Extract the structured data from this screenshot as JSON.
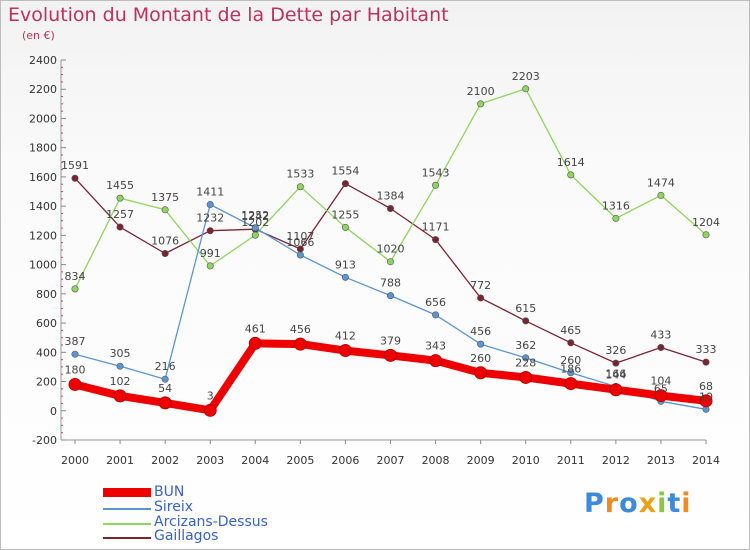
{
  "title": "Evolution du Montant de la Dette par Habitant",
  "unit": "(en €)",
  "chart_data": {
    "type": "line",
    "title": "Evolution du Montant de la Dette par Habitant",
    "subtitle": "(en €)",
    "xlabel": "",
    "ylabel": "",
    "x": [
      2000,
      2001,
      2002,
      2003,
      2004,
      2005,
      2006,
      2007,
      2008,
      2009,
      2010,
      2011,
      2012,
      2013,
      2014
    ],
    "ylim": [
      -200,
      2400
    ],
    "y_ticks": [
      -200,
      0,
      200,
      400,
      600,
      800,
      1000,
      1200,
      1400,
      1600,
      1800,
      2000,
      2200,
      2400
    ],
    "grid": false,
    "legend_position": "bottom-left",
    "series": [
      {
        "name": "BUN",
        "color": "#ee0000",
        "values": [
          180,
          102,
          54,
          3,
          461,
          456,
          412,
          379,
          343,
          260,
          228,
          186,
          144,
          104,
          68
        ]
      },
      {
        "name": "Sireix",
        "color": "#5b96d2",
        "values": [
          387,
          305,
          216,
          1411,
          1252,
          1066,
          913,
          788,
          656,
          456,
          362,
          260,
          166,
          65,
          10
        ]
      },
      {
        "name": "Arcizans-Dessus",
        "color": "#8fd561",
        "values": [
          834,
          1455,
          1375,
          991,
          1202,
          1533,
          1255,
          1020,
          1543,
          2100,
          2203,
          1614,
          1316,
          1474,
          1204
        ]
      },
      {
        "name": "Gaillagos",
        "color": "#7a2430",
        "values": [
          1591,
          1257,
          1076,
          1232,
          1242,
          1107,
          1554,
          1384,
          1171,
          772,
          615,
          465,
          326,
          433,
          333
        ]
      }
    ]
  },
  "logo": {
    "letters": [
      "P",
      "r",
      "o",
      "x",
      "i",
      "t",
      "i"
    ],
    "colors": [
      "#3d8ad8",
      "#f28a1e",
      "#3d8ad8",
      "#e8a21a",
      "#8cc63f",
      "#3d8ad8",
      "#f28a1e"
    ]
  }
}
